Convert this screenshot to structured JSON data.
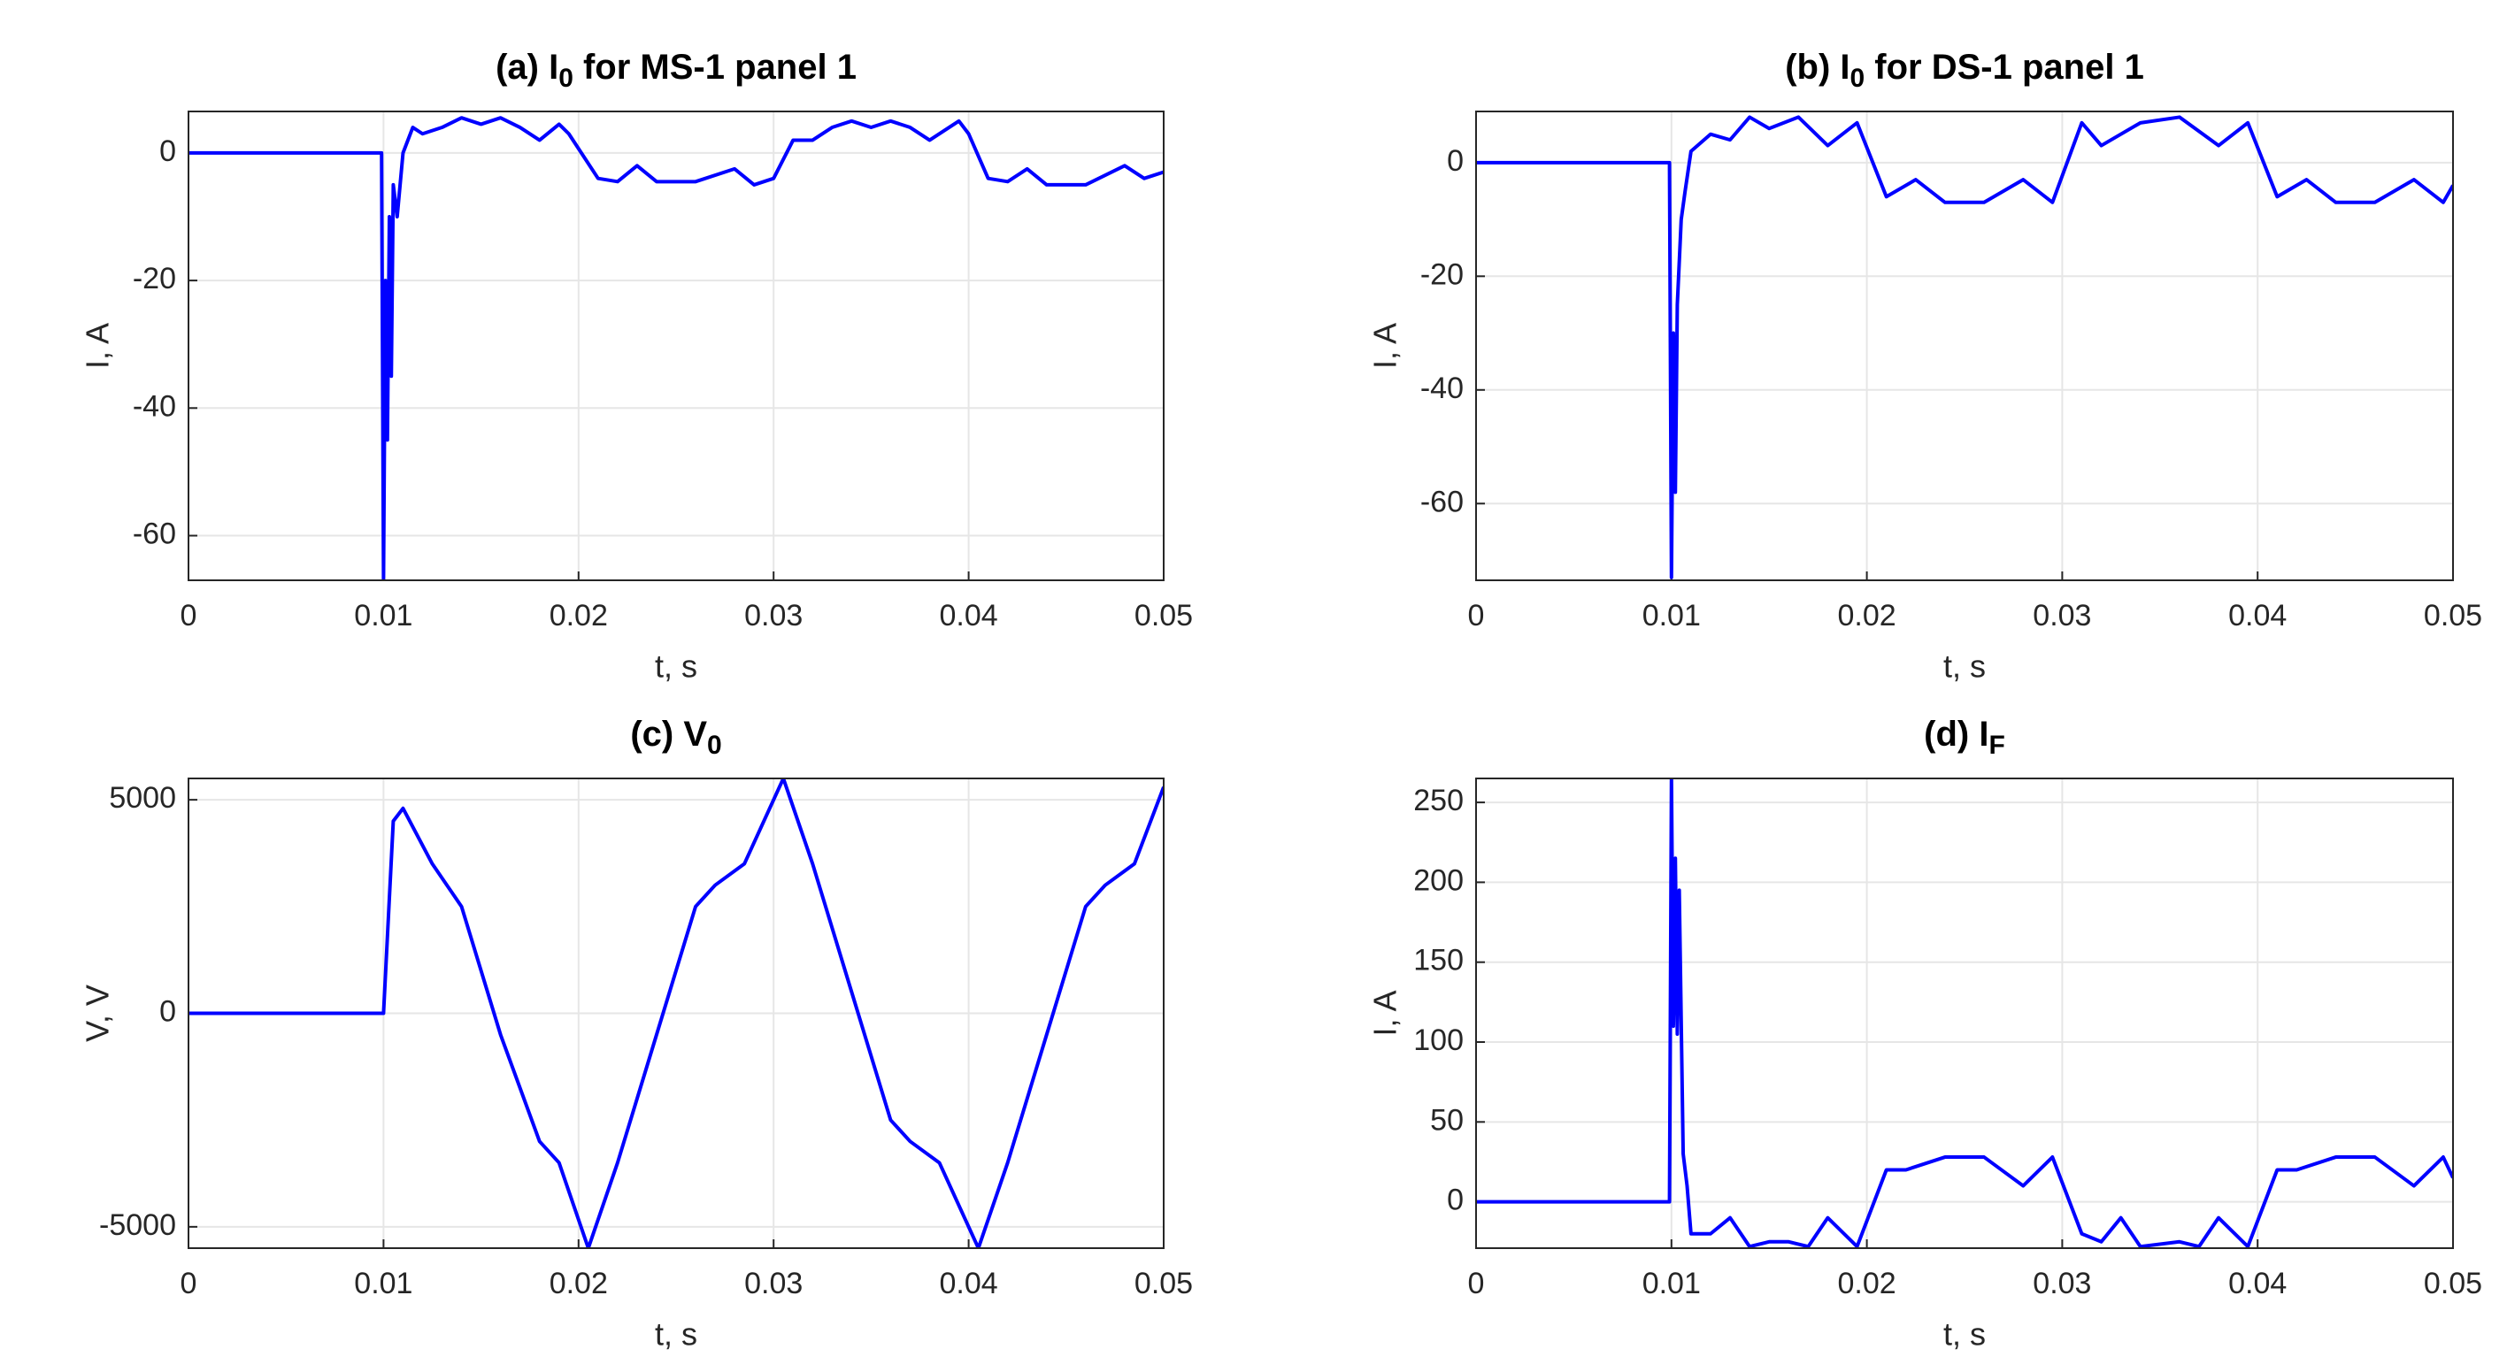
{
  "chart_data": [
    {
      "type": "line",
      "title": "(a) I",
      "title_sub": "0",
      "title_rest": " for MS-1 panel 1",
      "xlabel": "t, s",
      "ylabel": "I, A",
      "color": "#0000ff",
      "grid": true,
      "xlim": [
        0,
        0.05
      ],
      "ylim": [
        -67,
        6.5
      ],
      "xticks": [
        0,
        0.01,
        0.02,
        0.03,
        0.04,
        0.05
      ],
      "yticks": [
        -60,
        -40,
        -20,
        0
      ],
      "x": [
        0,
        0.0099,
        0.01,
        0.0101,
        0.0102,
        0.0103,
        0.0104,
        0.0105,
        0.0107,
        0.011,
        0.0115,
        0.012,
        0.013,
        0.014,
        0.015,
        0.016,
        0.017,
        0.018,
        0.019,
        0.0195,
        0.021,
        0.022,
        0.023,
        0.024,
        0.026,
        0.028,
        0.029,
        0.03,
        0.031,
        0.032,
        0.033,
        0.034,
        0.035,
        0.036,
        0.037,
        0.038,
        0.0395,
        0.04,
        0.041,
        0.042,
        0.043,
        0.044,
        0.046,
        0.048,
        0.049,
        0.05
      ],
      "values": [
        0,
        0,
        -67,
        -20,
        -45,
        -10,
        -35,
        -5,
        -10,
        0,
        4,
        3,
        4,
        5.5,
        4.5,
        5.5,
        4,
        2,
        4.5,
        3,
        -4,
        -4.5,
        -2,
        -4.5,
        -4.5,
        -2.5,
        -5,
        -4,
        2,
        2,
        4,
        5,
        4,
        5,
        4,
        2,
        5,
        3,
        -4,
        -4.5,
        -2.5,
        -5,
        -5,
        -2,
        -4,
        -3
      ]
    },
    {
      "type": "line",
      "title": "(b) I",
      "title_sub": "0",
      "title_rest": " for DS-1 panel 1",
      "xlabel": "t, s",
      "ylabel": "I, A",
      "color": "#0000ff",
      "grid": true,
      "xlim": [
        0,
        0.05
      ],
      "ylim": [
        -73.5,
        9
      ],
      "xticks": [
        0,
        0.01,
        0.02,
        0.03,
        0.04,
        0.05
      ],
      "yticks": [
        -60,
        -40,
        -20,
        0
      ],
      "x": [
        0,
        0.0099,
        0.01,
        0.0101,
        0.0102,
        0.0103,
        0.0105,
        0.0107,
        0.011,
        0.012,
        0.013,
        0.014,
        0.015,
        0.0165,
        0.018,
        0.0195,
        0.021,
        0.0225,
        0.024,
        0.026,
        0.028,
        0.0295,
        0.031,
        0.032,
        0.034,
        0.036,
        0.038,
        0.0395,
        0.041,
        0.0425,
        0.044,
        0.046,
        0.048,
        0.0495,
        0.05
      ],
      "values": [
        0,
        0,
        -73,
        -30,
        -58,
        -25,
        -10,
        -5,
        2,
        5,
        4,
        8,
        6,
        8,
        3,
        7,
        -6,
        -3,
        -7,
        -7,
        -3,
        -7,
        7,
        3,
        7,
        8,
        3,
        7,
        -6,
        -3,
        -7,
        -7,
        -3,
        -7,
        -4
      ]
    },
    {
      "type": "line",
      "title": "(c) V",
      "title_sub": "0",
      "title_rest": "",
      "xlabel": "t, s",
      "ylabel": "V, V",
      "color": "#0000ff",
      "grid": true,
      "xlim": [
        0,
        0.05
      ],
      "ylim": [
        -5500,
        5500
      ],
      "xticks": [
        0,
        0.01,
        0.02,
        0.03,
        0.04,
        0.05
      ],
      "yticks": [
        -5000,
        0,
        5000
      ],
      "x": [
        0,
        0.01,
        0.0105,
        0.011,
        0.0125,
        0.014,
        0.016,
        0.018,
        0.019,
        0.0205,
        0.022,
        0.024,
        0.026,
        0.027,
        0.0285,
        0.0305,
        0.032,
        0.034,
        0.036,
        0.037,
        0.0385,
        0.0405,
        0.042,
        0.044,
        0.046,
        0.047,
        0.0485,
        0.05
      ],
      "values": [
        0,
        0,
        4500,
        4800,
        3500,
        2500,
        -500,
        -3000,
        -3500,
        -5500,
        -3500,
        -500,
        2500,
        3000,
        3500,
        5500,
        3500,
        500,
        -2500,
        -3000,
        -3500,
        -5500,
        -3500,
        -500,
        2500,
        3000,
        3500,
        5300
      ]
    },
    {
      "type": "line",
      "title": "(d) I",
      "title_sub": "F",
      "title_rest": "",
      "ylabel": "I, A",
      "xlabel": "t, s",
      "color": "#0000ff",
      "grid": true,
      "xlim": [
        0,
        0.05
      ],
      "ylim": [
        -29,
        265
      ],
      "xticks": [
        0,
        0.01,
        0.02,
        0.03,
        0.04,
        0.05
      ],
      "yticks": [
        0,
        50,
        100,
        150,
        200,
        250
      ],
      "x": [
        0,
        0.0099,
        0.01,
        0.0101,
        0.0102,
        0.0103,
        0.0104,
        0.0106,
        0.0108,
        0.011,
        0.012,
        0.013,
        0.014,
        0.015,
        0.016,
        0.017,
        0.018,
        0.0195,
        0.021,
        0.022,
        0.024,
        0.026,
        0.028,
        0.0295,
        0.031,
        0.032,
        0.033,
        0.034,
        0.036,
        0.037,
        0.038,
        0.0395,
        0.041,
        0.042,
        0.044,
        0.046,
        0.048,
        0.0495,
        0.05
      ],
      "values": [
        0,
        0,
        265,
        110,
        215,
        105,
        195,
        30,
        10,
        -20,
        -20,
        -10,
        -28,
        -25,
        -25,
        -28,
        -10,
        -28,
        20,
        20,
        28,
        28,
        10,
        28,
        -20,
        -25,
        -10,
        -28,
        -25,
        -28,
        -10,
        -28,
        20,
        20,
        28,
        28,
        10,
        28,
        15
      ]
    }
  ]
}
